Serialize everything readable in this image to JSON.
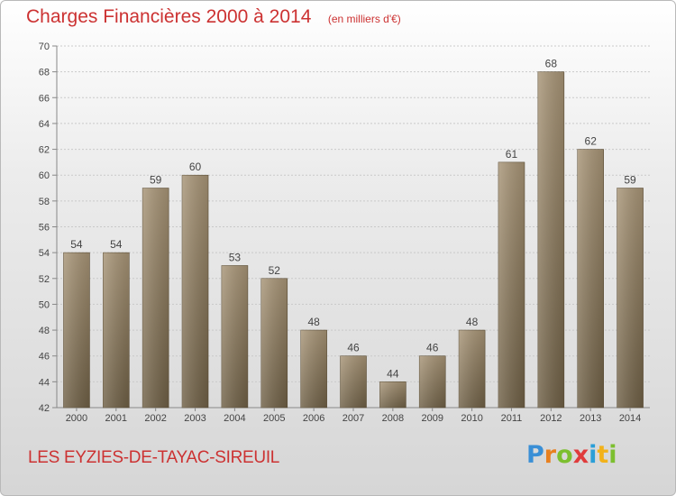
{
  "title": "Charges Financières 2000 à 2014",
  "subtitle": "(en milliers d'€)",
  "commune": "LES EYZIES-DE-TAYAC-SIREUIL",
  "logo": {
    "letters": [
      "P",
      "r",
      "o",
      "x",
      "i",
      "t",
      "i"
    ],
    "colors": [
      "#3a8fd6",
      "#e8801f",
      "#7cbf2f",
      "#e03b3b",
      "#2a9fd8",
      "#f2b21a",
      "#7cbf2f"
    ]
  },
  "colors": {
    "title": "#cc3232",
    "bar_top": "#a79476",
    "bar_bottom": "#6e5f45",
    "grid": "#c9c9c9"
  },
  "chart_data": {
    "type": "bar",
    "categories": [
      "2000",
      "2001",
      "2002",
      "2003",
      "2004",
      "2005",
      "2006",
      "2007",
      "2008",
      "2009",
      "2010",
      "2011",
      "2012",
      "2013",
      "2014"
    ],
    "values": [
      54,
      54,
      59,
      60,
      53,
      52,
      48,
      46,
      44,
      46,
      48,
      61,
      68,
      62,
      59
    ],
    "ylim": [
      42,
      70
    ],
    "yticks": [
      42,
      44,
      46,
      48,
      50,
      52,
      54,
      56,
      58,
      60,
      62,
      64,
      66,
      68,
      70
    ],
    "grid": true
  }
}
